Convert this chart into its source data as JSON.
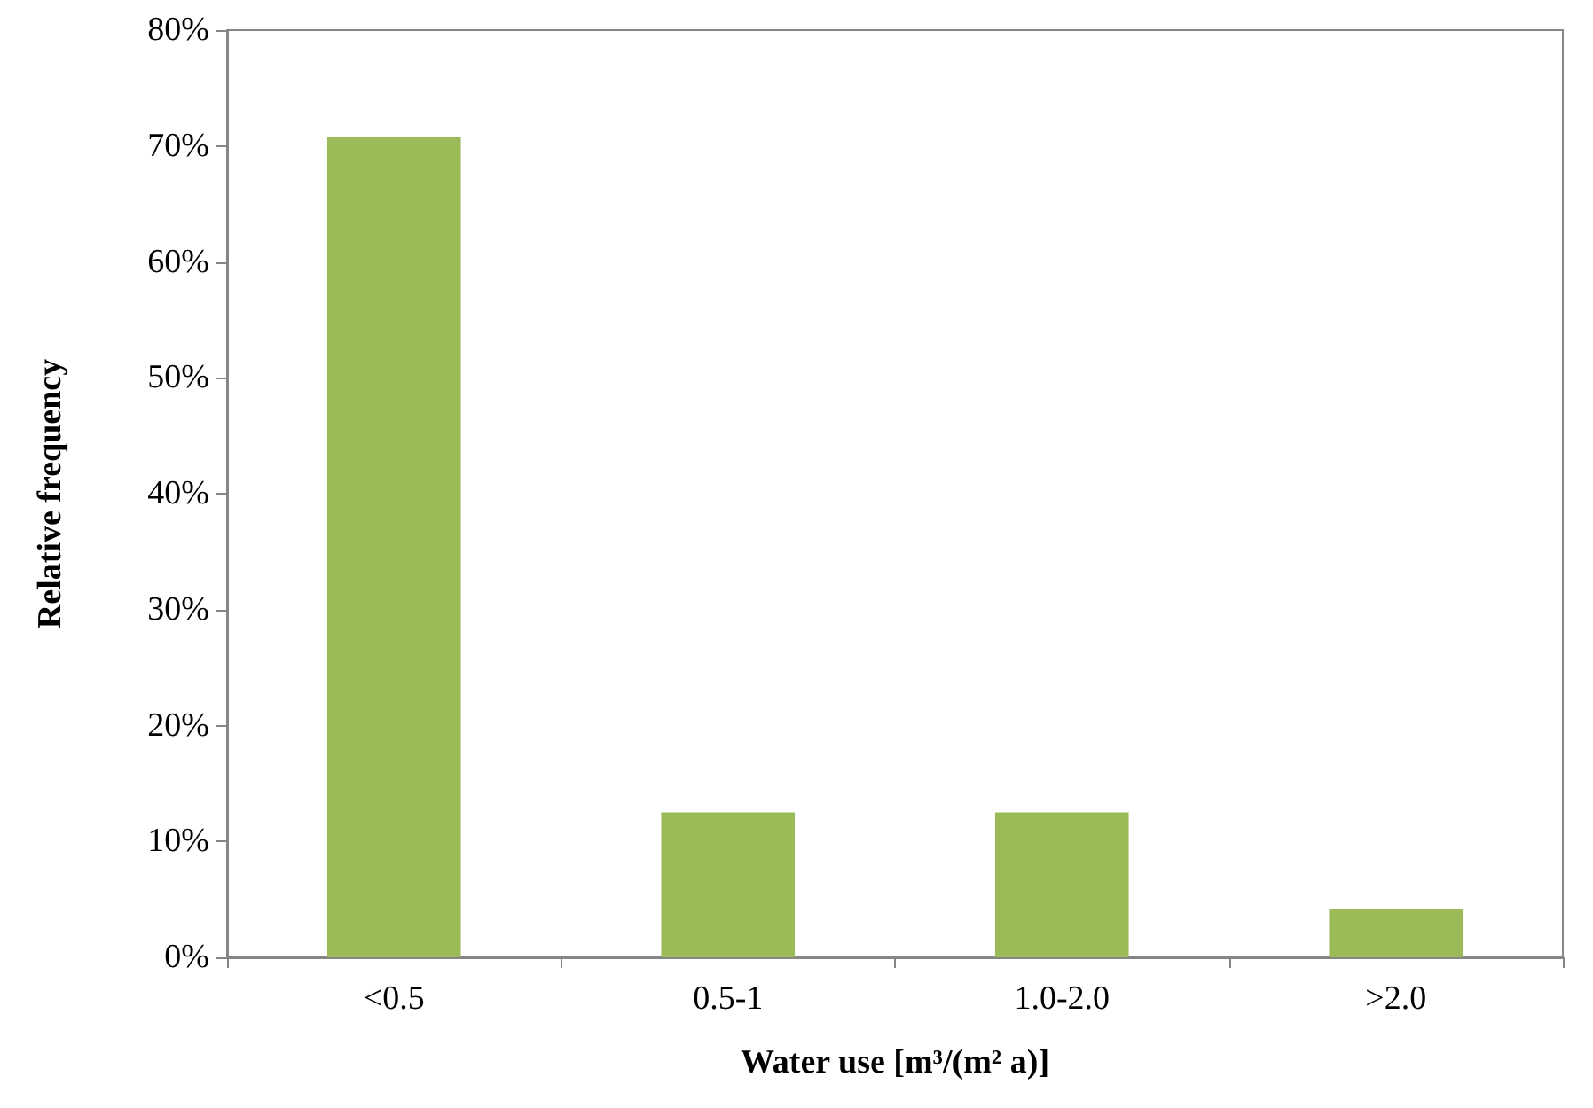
{
  "chart_data": {
    "type": "bar",
    "xlabel": "Water use [m³/(m² a)]",
    "ylabel": "Relative frequency",
    "categories": [
      "<0.5",
      "0.5-1",
      "1.0-2.0",
      ">2.0"
    ],
    "values": [
      70.8,
      12.5,
      12.5,
      4.2
    ],
    "color": "#9bbb59",
    "ylim": [
      0,
      80
    ],
    "yticks": [
      {
        "value": 0,
        "label": "0%"
      },
      {
        "value": 10,
        "label": "10%"
      },
      {
        "value": 20,
        "label": "20%"
      },
      {
        "value": 30,
        "label": "30%"
      },
      {
        "value": 40,
        "label": "40%"
      },
      {
        "value": 50,
        "label": "50%"
      },
      {
        "value": 60,
        "label": "60%"
      },
      {
        "value": 70,
        "label": "70%"
      },
      {
        "value": 80,
        "label": "80%"
      }
    ],
    "grid": false
  }
}
